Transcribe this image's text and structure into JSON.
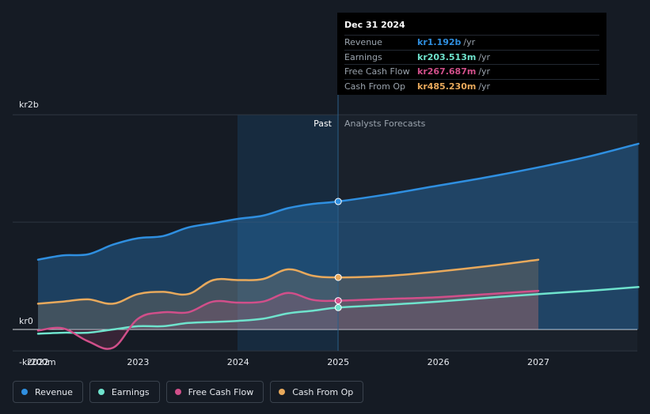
{
  "tooltip": {
    "date": "Dec 31 2024",
    "rows": [
      {
        "label": "Revenue",
        "value": "kr1.192b",
        "unit": "/yr",
        "color": "#2f8fe0"
      },
      {
        "label": "Earnings",
        "value": "kr203.513m",
        "unit": "/yr",
        "color": "#6fe3cd"
      },
      {
        "label": "Free Cash Flow",
        "value": "kr267.687m",
        "unit": "/yr",
        "color": "#d14f8a"
      },
      {
        "label": "Cash From Op",
        "value": "kr485.230m",
        "unit": "/yr",
        "color": "#e8a95c"
      }
    ]
  },
  "legend": [
    {
      "label": "Revenue",
      "color": "#2f8fe0"
    },
    {
      "label": "Earnings",
      "color": "#6fe3cd"
    },
    {
      "label": "Free Cash Flow",
      "color": "#d14f8a"
    },
    {
      "label": "Cash From Op",
      "color": "#e8a95c"
    }
  ],
  "chart_data": {
    "type": "line",
    "title": "",
    "xlabel": "",
    "ylabel": "",
    "x_ticks": [
      "2022",
      "2023",
      "2024",
      "2025",
      "2026",
      "2027"
    ],
    "x_tick_values": [
      2022,
      2023,
      2024,
      2025,
      2026,
      2027
    ],
    "y_tick_labels": [
      {
        "label": "kr2b",
        "value": 2000
      },
      {
        "label": "kr0",
        "value": 0
      },
      {
        "label": "-kr200m",
        "value": -200
      }
    ],
    "ylim": [
      -200,
      2000
    ],
    "xlim": [
      2021.8,
      2028.0
    ],
    "past_label": "Past",
    "forecast_label": "Analysts Forecasts",
    "past_band_start": 2024.0,
    "divider_x": 2025.0,
    "units": "kr millions",
    "series": [
      {
        "name": "Revenue",
        "color": "#2f8fe0",
        "filled": true,
        "points": [
          [
            2022.0,
            650
          ],
          [
            2022.25,
            690
          ],
          [
            2022.5,
            700
          ],
          [
            2022.75,
            790
          ],
          [
            2023.0,
            850
          ],
          [
            2023.25,
            870
          ],
          [
            2023.5,
            950
          ],
          [
            2023.75,
            990
          ],
          [
            2024.0,
            1030
          ],
          [
            2024.25,
            1060
          ],
          [
            2024.5,
            1130
          ],
          [
            2024.75,
            1170
          ],
          [
            2025.0,
            1192
          ],
          [
            2025.5,
            1260
          ],
          [
            2026.0,
            1340
          ],
          [
            2026.5,
            1420
          ],
          [
            2027.0,
            1510
          ],
          [
            2027.5,
            1610
          ],
          [
            2028.0,
            1730
          ]
        ]
      },
      {
        "name": "Earnings",
        "color": "#6fe3cd",
        "filled": false,
        "points": [
          [
            2022.0,
            -40
          ],
          [
            2022.25,
            -30
          ],
          [
            2022.5,
            -30
          ],
          [
            2022.75,
            0
          ],
          [
            2023.0,
            30
          ],
          [
            2023.25,
            30
          ],
          [
            2023.5,
            60
          ],
          [
            2023.75,
            70
          ],
          [
            2024.0,
            80
          ],
          [
            2024.25,
            100
          ],
          [
            2024.5,
            150
          ],
          [
            2024.75,
            175
          ],
          [
            2025.0,
            204
          ],
          [
            2025.5,
            230
          ],
          [
            2026.0,
            260
          ],
          [
            2026.5,
            295
          ],
          [
            2027.0,
            330
          ],
          [
            2027.5,
            360
          ],
          [
            2028.0,
            395
          ]
        ]
      },
      {
        "name": "Free Cash Flow",
        "color": "#d14f8a",
        "filled": true,
        "points": [
          [
            2022.0,
            -10
          ],
          [
            2022.25,
            10
          ],
          [
            2022.5,
            -110
          ],
          [
            2022.75,
            -170
          ],
          [
            2023.0,
            100
          ],
          [
            2023.25,
            160
          ],
          [
            2023.5,
            160
          ],
          [
            2023.75,
            260
          ],
          [
            2024.0,
            250
          ],
          [
            2024.25,
            260
          ],
          [
            2024.5,
            340
          ],
          [
            2024.75,
            275
          ],
          [
            2025.0,
            268
          ],
          [
            2025.5,
            285
          ],
          [
            2026.0,
            300
          ],
          [
            2026.5,
            330
          ],
          [
            2027.0,
            360
          ]
        ]
      },
      {
        "name": "Cash From Op",
        "color": "#e8a95c",
        "filled": true,
        "points": [
          [
            2022.0,
            240
          ],
          [
            2022.25,
            260
          ],
          [
            2022.5,
            280
          ],
          [
            2022.75,
            240
          ],
          [
            2023.0,
            330
          ],
          [
            2023.25,
            350
          ],
          [
            2023.5,
            330
          ],
          [
            2023.75,
            460
          ],
          [
            2024.0,
            460
          ],
          [
            2024.25,
            470
          ],
          [
            2024.5,
            560
          ],
          [
            2024.75,
            500
          ],
          [
            2025.0,
            485
          ],
          [
            2025.5,
            500
          ],
          [
            2026.0,
            540
          ],
          [
            2026.5,
            590
          ],
          [
            2027.0,
            650
          ]
        ]
      }
    ]
  }
}
